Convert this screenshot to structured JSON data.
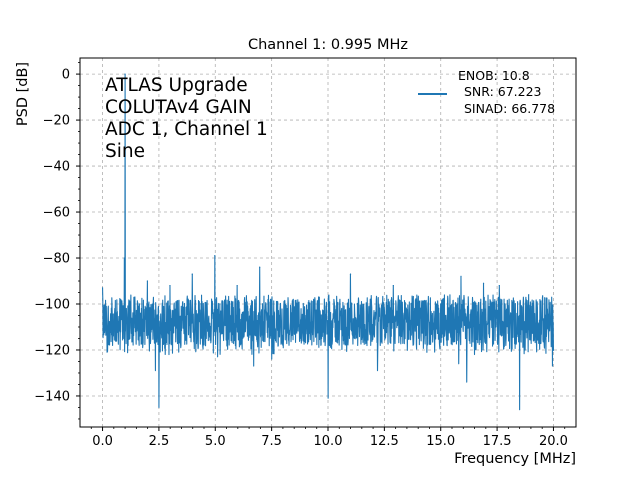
{
  "chart_data": {
    "type": "line",
    "title": "Channel 1: 0.995 MHz",
    "xlabel": "Frequency [MHz]",
    "ylabel": "PSD [dB]",
    "xlim": [
      -1.0,
      21.0
    ],
    "ylim": [
      -153.5,
      7.0
    ],
    "grid": true,
    "grid_style": "dashed",
    "legend_placement": "upper right",
    "x_ticks": [
      "0.0",
      "2.5",
      "5.0",
      "7.5",
      "10.0",
      "12.5",
      "15.0",
      "17.5",
      "20.0"
    ],
    "x_tick_values": [
      0,
      2.5,
      5,
      7.5,
      10,
      12.5,
      15,
      17.5,
      20
    ],
    "y_ticks": [
      "0",
      "−20",
      "−40",
      "−60",
      "−80",
      "−100",
      "−120",
      "−140"
    ],
    "y_tick_values": [
      0,
      -20,
      -40,
      -60,
      -80,
      -100,
      -120,
      -140
    ],
    "annotation_lines": [
      "ATLAS Upgrade",
      "COLUTAv4 GAIN",
      "ADC 1, Channel 1",
      "Sine"
    ],
    "legend_lines": [
      "ENOB: 10.8",
      "SNR: 67.223",
      "SINAD: 66.778"
    ],
    "series": [
      {
        "color": "#1f77b4",
        "noise_floor_db": -108,
        "noise_range_db": [
          -122,
          -96
        ],
        "x_range_mhz": [
          0.0,
          20.0
        ],
        "peaks": [
          {
            "x": 0.995,
            "y": 0
          },
          {
            "x": 0.0,
            "y": -93
          },
          {
            "x": 0.97,
            "y": -80
          },
          {
            "x": 1.99,
            "y": -90
          },
          {
            "x": 2.99,
            "y": -92
          },
          {
            "x": 3.98,
            "y": -87
          },
          {
            "x": 4.98,
            "y": -79
          },
          {
            "x": 5.97,
            "y": -92
          },
          {
            "x": 6.97,
            "y": -84
          },
          {
            "x": 11.0,
            "y": -87
          },
          {
            "x": 12.9,
            "y": -92
          },
          {
            "x": 15.9,
            "y": -88
          },
          {
            "x": 16.9,
            "y": -91
          },
          {
            "x": 17.6,
            "y": -92
          },
          {
            "x": 18.9,
            "y": -96
          }
        ],
        "dips": [
          {
            "x": 0.2,
            "y": -121
          },
          {
            "x": 2.35,
            "y": -129
          },
          {
            "x": 2.5,
            "y": -145
          },
          {
            "x": 2.95,
            "y": -122
          },
          {
            "x": 5.1,
            "y": -123
          },
          {
            "x": 6.7,
            "y": -127
          },
          {
            "x": 7.5,
            "y": -124
          },
          {
            "x": 10.0,
            "y": -141
          },
          {
            "x": 12.2,
            "y": -129
          },
          {
            "x": 15.8,
            "y": -126
          },
          {
            "x": 16.15,
            "y": -134
          },
          {
            "x": 18.5,
            "y": -146
          },
          {
            "x": 19.95,
            "y": -127
          }
        ]
      }
    ]
  },
  "colors": {
    "line": "#1f77b4",
    "grid": "#b0b0b0",
    "axes": "#000000",
    "background": "#ffffff"
  }
}
